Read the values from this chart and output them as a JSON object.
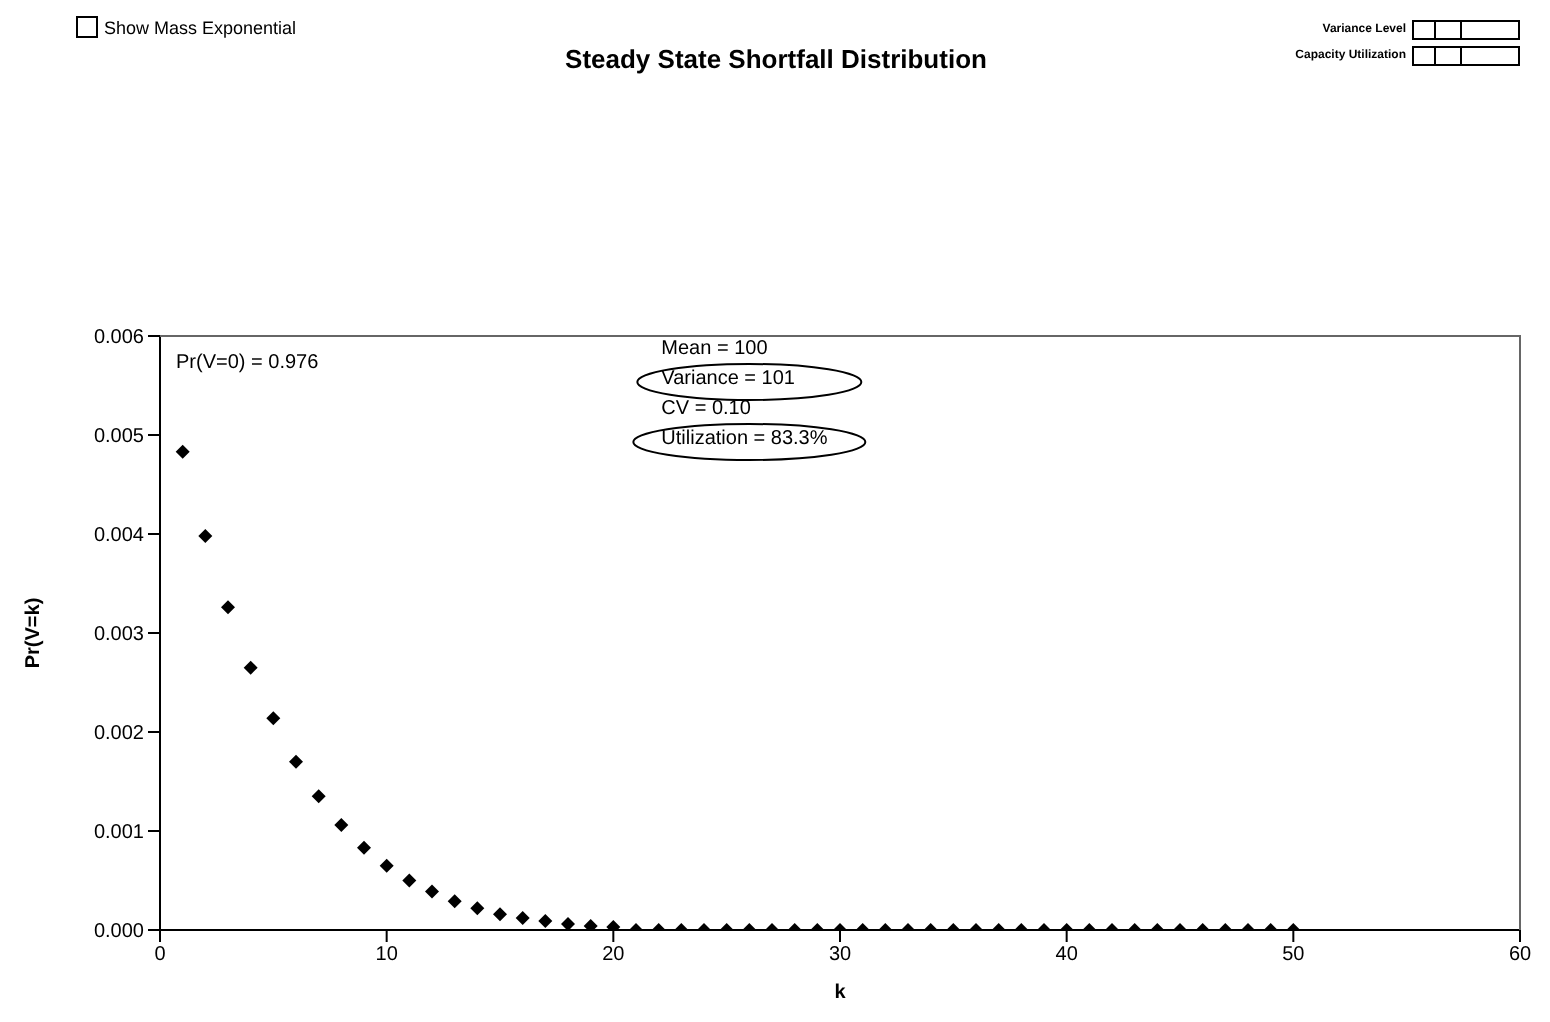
{
  "chart_data": {
    "type": "scatter",
    "title": "Steady State Shortfall Distribution",
    "xlabel": "k",
    "ylabel": "Pr(V=k)",
    "annotations": [
      "Show Mass Exponential",
      "Variance Level",
      "Capacity Utilization",
      "Pr(V=0) = 0.976",
      "Mean = 100",
      "Variance = 101",
      "CV = 0.10",
      "Utilization = 83.3%"
    ],
    "x": [
      1,
      2,
      3,
      4,
      5,
      6,
      7,
      8,
      9,
      10,
      11,
      12,
      13,
      14,
      15,
      16,
      17,
      18,
      19,
      20,
      21,
      22,
      23,
      24,
      25,
      26,
      27,
      28,
      29,
      30,
      31,
      32,
      33,
      34,
      35,
      36,
      37,
      38,
      39,
      40,
      41,
      42,
      43,
      44,
      45,
      46,
      47,
      48,
      49,
      50
    ],
    "values": [
      0.00483,
      0.00398,
      0.00326,
      0.00265,
      0.00214,
      0.0017,
      0.00135,
      0.00106,
      0.00083,
      0.00065,
      0.0005,
      0.00039,
      0.00029,
      0.00022,
      0.00016,
      0.00012,
      9e-05,
      6e-05,
      4e-05,
      3e-05,
      0,
      0,
      0,
      0,
      0,
      0,
      0,
      0,
      0,
      0,
      0,
      0,
      0,
      0,
      0,
      0,
      0,
      0,
      0,
      0,
      0,
      0,
      0,
      0,
      0,
      0,
      0,
      0,
      0,
      0
    ],
    "color": "#000000",
    "marker": "diamond",
    "xlim": [
      0,
      60
    ],
    "xticks": [
      0,
      10,
      20,
      30,
      40,
      50,
      60
    ],
    "ylim": [
      0,
      0.006
    ],
    "yticks": [
      {
        "value": 0,
        "label": "0.000"
      },
      {
        "value": 0.001,
        "label": "0.001"
      },
      {
        "value": 0.002,
        "label": "0.002"
      },
      {
        "value": 0.003,
        "label": "0.003"
      },
      {
        "value": 0.004,
        "label": "0.004"
      },
      {
        "value": 0.005,
        "label": "0.005"
      },
      {
        "value": 0.006,
        "label": "0.006"
      }
    ],
    "grid": false
  }
}
